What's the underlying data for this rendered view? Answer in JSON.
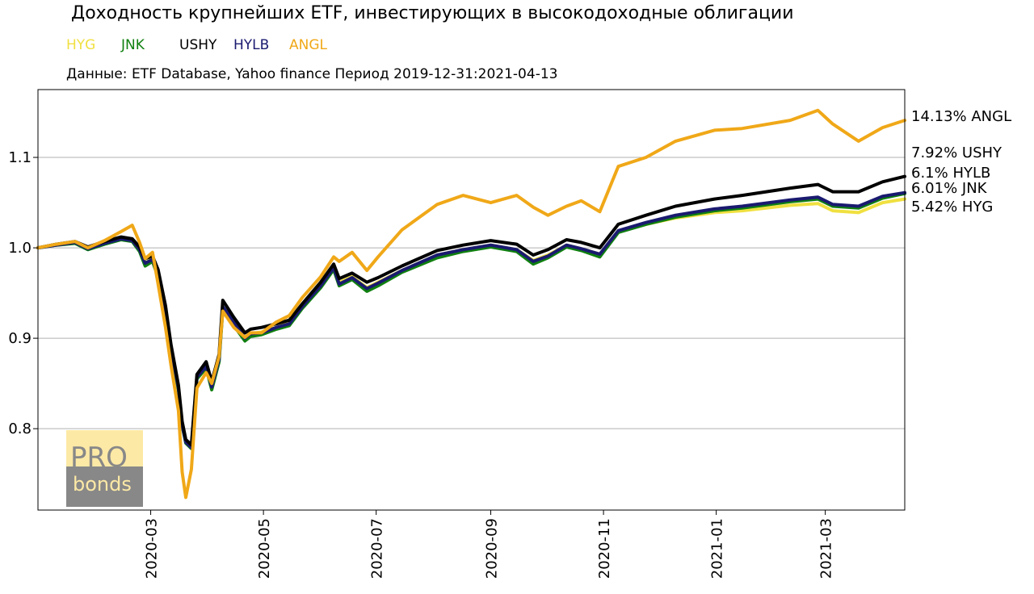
{
  "title": "Доходность крупнейших ETF, инвестирующих в высокодоходные облигации",
  "subtitle": "Данные: ETF Database, Yahoo finance Период 2019-12-31:2021-04-13",
  "logo": {
    "line1": "PRO",
    "line2": "bonds",
    "top_color": "#fde9a6",
    "bottom_color": "#888888",
    "text_color": "#fde9a6"
  },
  "chart_data": {
    "type": "line",
    "title": "Доходность крупнейших ETF, инвестирующих в высокодоходные облигации",
    "xlabel": "",
    "ylabel": "",
    "x_range": [
      "2019-12-31",
      "2021-04-13"
    ],
    "ylim": [
      0.71,
      1.175
    ],
    "y_ticks": [
      0.8,
      0.9,
      1.0,
      1.1
    ],
    "y_tick_labels": [
      "0.8",
      "0.9",
      "1.0",
      "1.1"
    ],
    "x_ticks": [
      "2020-03-01",
      "2020-05-01",
      "2020-07-01",
      "2020-09-01",
      "2020-11-01",
      "2021-01-01",
      "2021-03-01"
    ],
    "x_tick_labels": [
      "2020-03",
      "2020-05",
      "2020-07",
      "2020-09",
      "2020-11",
      "2021-01",
      "2021-03"
    ],
    "grid": "horizontal",
    "legend_position": "top-left",
    "x": [
      "2019-12-31",
      "2020-01-10",
      "2020-01-20",
      "2020-01-27",
      "2020-02-05",
      "2020-02-14",
      "2020-02-20",
      "2020-02-24",
      "2020-02-27",
      "2020-03-02",
      "2020-03-05",
      "2020-03-09",
      "2020-03-12",
      "2020-03-16",
      "2020-03-18",
      "2020-03-20",
      "2020-03-23",
      "2020-03-26",
      "2020-03-31",
      "2020-04-03",
      "2020-04-07",
      "2020-04-09",
      "2020-04-15",
      "2020-04-21",
      "2020-04-24",
      "2020-04-30",
      "2020-05-08",
      "2020-05-15",
      "2020-05-22",
      "2020-06-01",
      "2020-06-08",
      "2020-06-11",
      "2020-06-18",
      "2020-06-26",
      "2020-07-02",
      "2020-07-15",
      "2020-08-03",
      "2020-08-17",
      "2020-09-01",
      "2020-09-15",
      "2020-09-24",
      "2020-10-02",
      "2020-10-12",
      "2020-10-20",
      "2020-10-30",
      "2020-11-09",
      "2020-11-24",
      "2020-12-10",
      "2020-12-31",
      "2021-01-15",
      "2021-02-10",
      "2021-02-25",
      "2021-03-05",
      "2021-03-19",
      "2021-04-01",
      "2021-04-13"
    ],
    "series": [
      {
        "name": "HYG",
        "color": "#f0e040",
        "end_label": "5.42% HYG",
        "values": [
          1.0,
          1.004,
          1.006,
          0.999,
          1.005,
          1.01,
          1.008,
          0.998,
          0.983,
          0.988,
          0.972,
          0.932,
          0.89,
          0.846,
          0.805,
          0.786,
          0.78,
          0.858,
          0.87,
          0.848,
          0.878,
          0.934,
          0.916,
          0.9,
          0.905,
          0.907,
          0.912,
          0.917,
          0.935,
          0.958,
          0.978,
          0.962,
          0.968,
          0.956,
          0.962,
          0.975,
          0.992,
          0.998,
          1.003,
          0.998,
          0.986,
          0.992,
          1.003,
          0.999,
          0.993,
          1.018,
          1.026,
          1.033,
          1.039,
          1.041,
          1.047,
          1.049,
          1.041,
          1.039,
          1.05,
          1.054
        ]
      },
      {
        "name": "JNK",
        "color": "#108010",
        "end_label": "6.01% JNK",
        "values": [
          1.0,
          1.003,
          1.005,
          0.998,
          1.004,
          1.009,
          1.007,
          0.996,
          0.98,
          0.985,
          0.968,
          0.928,
          0.887,
          0.843,
          0.803,
          0.784,
          0.778,
          0.855,
          0.867,
          0.843,
          0.874,
          0.932,
          0.914,
          0.897,
          0.902,
          0.904,
          0.91,
          0.914,
          0.933,
          0.956,
          0.976,
          0.958,
          0.965,
          0.952,
          0.958,
          0.973,
          0.989,
          0.996,
          1.001,
          0.996,
          0.982,
          0.989,
          1.001,
          0.997,
          0.99,
          1.017,
          1.026,
          1.034,
          1.041,
          1.044,
          1.051,
          1.054,
          1.046,
          1.044,
          1.055,
          1.06
        ]
      },
      {
        "name": "USHY",
        "color": "#000000",
        "end_label": "7.92% USHY",
        "values": [
          1.0,
          1.004,
          1.007,
          1.001,
          1.007,
          1.012,
          1.01,
          1.001,
          0.988,
          0.991,
          0.976,
          0.936,
          0.893,
          0.848,
          0.808,
          0.788,
          0.782,
          0.86,
          0.874,
          0.852,
          0.882,
          0.942,
          0.923,
          0.906,
          0.91,
          0.912,
          0.916,
          0.92,
          0.938,
          0.962,
          0.982,
          0.966,
          0.972,
          0.962,
          0.967,
          0.98,
          0.997,
          1.003,
          1.008,
          1.004,
          0.992,
          0.998,
          1.009,
          1.006,
          1.0,
          1.026,
          1.036,
          1.046,
          1.054,
          1.058,
          1.066,
          1.07,
          1.062,
          1.062,
          1.073,
          1.079
        ]
      },
      {
        "name": "HYLB",
        "color": "#1a1a70",
        "end_label": "6.1% HYLB",
        "values": [
          1.0,
          1.003,
          1.006,
          0.999,
          1.005,
          1.01,
          1.008,
          0.998,
          0.983,
          0.987,
          0.971,
          0.931,
          0.889,
          0.845,
          0.804,
          0.785,
          0.779,
          0.857,
          0.869,
          0.846,
          0.877,
          0.935,
          0.918,
          0.9,
          0.905,
          0.906,
          0.912,
          0.916,
          0.935,
          0.958,
          0.978,
          0.96,
          0.967,
          0.955,
          0.961,
          0.975,
          0.992,
          0.998,
          1.003,
          0.998,
          0.985,
          0.991,
          1.003,
          0.999,
          0.993,
          1.019,
          1.028,
          1.036,
          1.043,
          1.046,
          1.053,
          1.056,
          1.048,
          1.046,
          1.057,
          1.061
        ]
      },
      {
        "name": "ANGL",
        "color": "#f0a818",
        "end_label": "14.13% ANGL",
        "values": [
          1.0,
          1.004,
          1.007,
          1.0,
          1.008,
          1.018,
          1.025,
          1.006,
          0.988,
          0.995,
          0.96,
          0.912,
          0.87,
          0.82,
          0.752,
          0.724,
          0.755,
          0.845,
          0.862,
          0.85,
          0.88,
          0.93,
          0.912,
          0.901,
          0.906,
          0.906,
          0.918,
          0.925,
          0.945,
          0.968,
          0.99,
          0.985,
          0.995,
          0.975,
          0.99,
          1.02,
          1.048,
          1.058,
          1.05,
          1.058,
          1.045,
          1.036,
          1.046,
          1.052,
          1.04,
          1.09,
          1.1,
          1.118,
          1.13,
          1.132,
          1.141,
          1.152,
          1.137,
          1.118,
          1.133,
          1.141
        ]
      }
    ]
  }
}
